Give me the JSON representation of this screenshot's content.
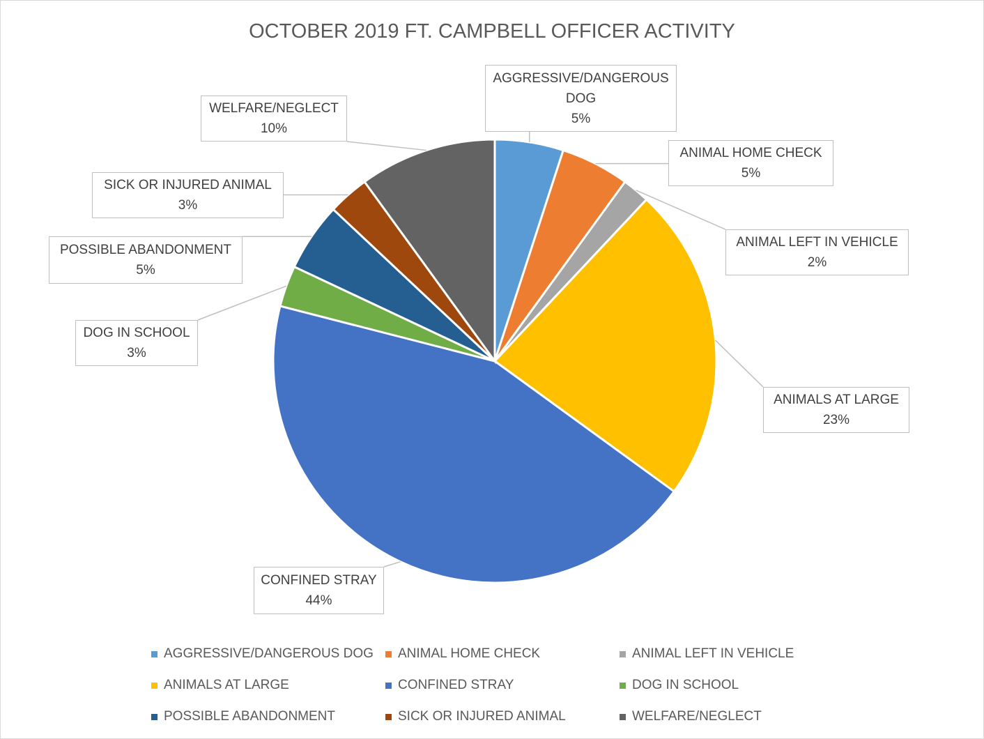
{
  "chart_data": {
    "type": "pie",
    "title": "OCTOBER 2019 FT. CAMPBELL OFFICER ACTIVITY",
    "categories": [
      "AGGRESSIVE/DANGEROUS DOG",
      "ANIMAL HOME CHECK",
      "ANIMAL LEFT IN VEHICLE",
      "ANIMALS AT LARGE",
      "CONFINED STRAY",
      "DOG IN SCHOOL",
      "POSSIBLE ABANDONMENT",
      "SICK OR INJURED ANIMAL",
      "WELFARE/NEGLECT"
    ],
    "values": [
      5,
      5,
      2,
      23,
      44,
      3,
      5,
      3,
      10
    ],
    "value_labels": [
      "5%",
      "5%",
      "2%",
      "23%",
      "44%",
      "3%",
      "5%",
      "3%",
      "10%"
    ],
    "colors": [
      "#5b9bd5",
      "#ed7d31",
      "#a5a5a5",
      "#ffc000",
      "#4472c4",
      "#70ad47",
      "#255e91",
      "#9e480e",
      "#636363"
    ],
    "legend": "bottom"
  }
}
